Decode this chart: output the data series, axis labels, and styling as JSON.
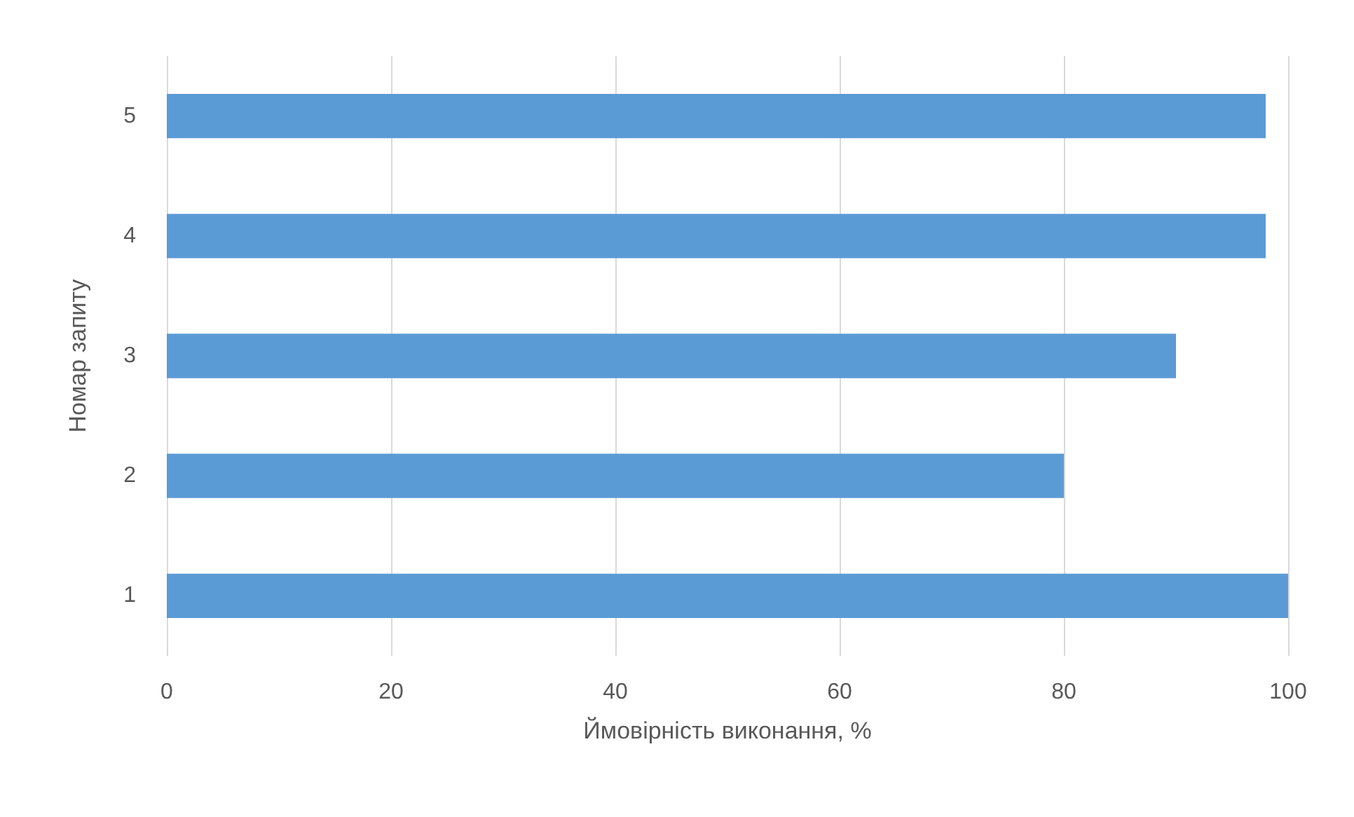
{
  "chart_data": {
    "type": "bar",
    "orientation": "horizontal",
    "xlabel": "Ймовірність виконання, %",
    "ylabel": "Номар запиту",
    "categories": [
      "5",
      "4",
      "3",
      "2",
      "1"
    ],
    "values": [
      98,
      98,
      90,
      80,
      100
    ],
    "color": "#5b9bd5",
    "xlim": [
      0,
      100
    ],
    "xticks": [
      0,
      20,
      40,
      60,
      80,
      100
    ],
    "grid": "x"
  }
}
